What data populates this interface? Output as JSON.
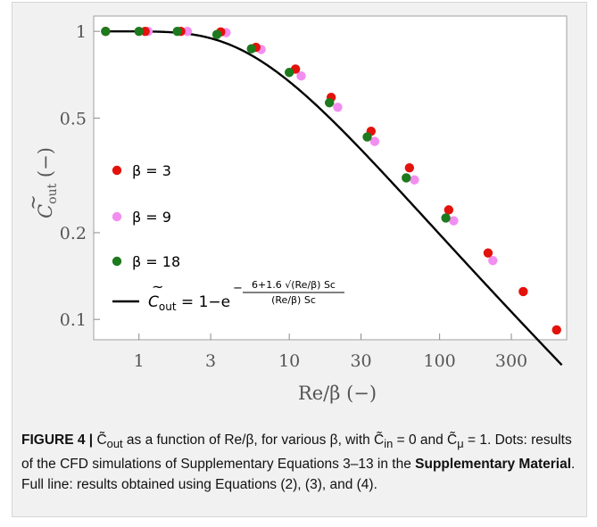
{
  "chart_data": {
    "type": "scatter",
    "x_scale": "log",
    "y_scale": "log",
    "xlim": [
      0.5,
      700
    ],
    "ylim": [
      0.085,
      1.13
    ],
    "xlabel": "Re/β (−)",
    "ylabel_main": "C",
    "ylabel_sub": "out",
    "ylabel_unit": " (−)",
    "x_ticks": [
      1,
      3,
      10,
      30,
      100,
      300
    ],
    "x_tick_labels": [
      "1",
      "3",
      "10",
      "30",
      "100",
      "300"
    ],
    "y_ticks": [
      0.1,
      0.2,
      0.5,
      1
    ],
    "y_tick_labels": [
      "0.1",
      "0.2",
      "0.5",
      "1"
    ],
    "series": [
      {
        "name": "β = 3",
        "color": "#e3120b",
        "x": [
          0.6,
          1.1,
          1.9,
          3.5,
          6.0,
          11.0,
          19.0,
          35.0,
          63.0,
          115.0,
          210.0,
          360.0,
          600.0
        ],
        "y": [
          1.0,
          1.0,
          1.0,
          0.995,
          0.88,
          0.74,
          0.59,
          0.45,
          0.336,
          0.24,
          0.17,
          0.125,
          0.092
        ]
      },
      {
        "name": "β = 9",
        "color": "#f28ef0",
        "x": [
          1.15,
          2.1,
          3.8,
          6.5,
          12.0,
          21.0,
          37.0,
          68.0,
          124.0,
          226.0
        ],
        "y": [
          1.0,
          1.0,
          0.99,
          0.865,
          0.7,
          0.545,
          0.415,
          0.305,
          0.22,
          0.16
        ]
      },
      {
        "name": "β = 18",
        "color": "#1d7a1d",
        "x": [
          0.6,
          1.0,
          1.8,
          3.3,
          5.6,
          10.0,
          18.5,
          33.0,
          60.0,
          110.0
        ],
        "y": [
          1.0,
          1.0,
          1.0,
          0.975,
          0.87,
          0.72,
          0.565,
          0.43,
          0.31,
          0.225
        ]
      }
    ],
    "curve": {
      "name": "full line",
      "color": "#000000",
      "formula_coefficients": {
        "a": 6,
        "b": 1.6,
        "sc": 1
      },
      "x_range": [
        0.6,
        650
      ]
    },
    "legend_placement": "left",
    "formula_label": {
      "lhs_main": "C",
      "lhs_sub": "out",
      "equals": " = 1−e",
      "exp_sign": "−",
      "numerator": "6+1.6 √(Re/β) Sc",
      "denominator": "(Re/β) Sc"
    },
    "grid": false
  },
  "caption": {
    "label": "FIGURE 4 |",
    "part1": " C̃",
    "part1_sub": "out",
    "part2": " as a function of Re/β, for various β, with C̃",
    "part2_sub": "in",
    "part3": " = 0 and C̃",
    "part3_sub": "μ",
    "part4": " = 1. Dots: results of the CFD simulations of Supplementary Equations 3–13 in the ",
    "bold_text": "Supplementary Material",
    "part5": ". Full line: results obtained using Equations (2), (3), and (4)."
  }
}
